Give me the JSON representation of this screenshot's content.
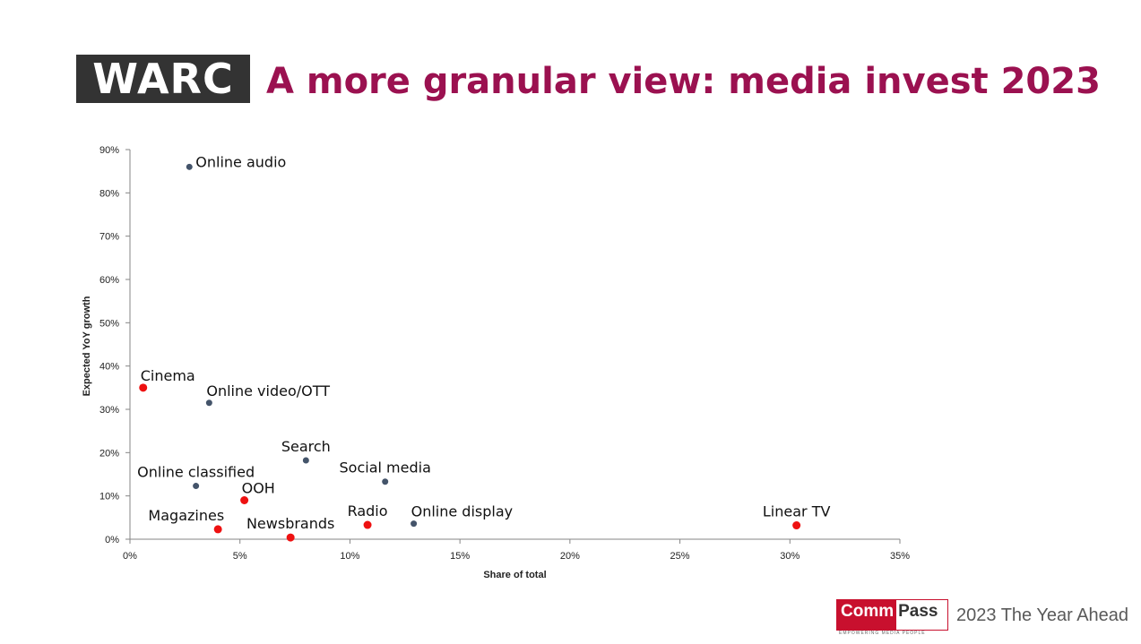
{
  "header": {
    "logo_text": "WARC",
    "title": "A more granular view: media invest 2023"
  },
  "footer": {
    "brand_left": "Comm",
    "brand_right": "Pass",
    "brand_tagline": "EMPOWERING MEDIA PEOPLE",
    "text": "2023 The Year Ahead"
  },
  "colors": {
    "title": "#9b1150",
    "point_digital": "#44546a",
    "point_traditional": "#ee1111",
    "axis": "#868686",
    "brand_red": "#c8102e"
  },
  "chart_data": {
    "type": "scatter",
    "title": "",
    "xlabel": "Share of total",
    "ylabel": "Expected YoY growth",
    "xlim": [
      0,
      35
    ],
    "ylim": [
      0,
      90
    ],
    "x_ticks": [
      {
        "value": 0,
        "label": "0%"
      },
      {
        "value": 5,
        "label": "5%"
      },
      {
        "value": 10,
        "label": "10%"
      },
      {
        "value": 15,
        "label": "15%"
      },
      {
        "value": 20,
        "label": "20%"
      },
      {
        "value": 25,
        "label": "25%"
      },
      {
        "value": 30,
        "label": "30%"
      },
      {
        "value": 35,
        "label": "35%"
      }
    ],
    "y_ticks": [
      {
        "value": 0,
        "label": "0%"
      },
      {
        "value": 10,
        "label": "10%"
      },
      {
        "value": 20,
        "label": "20%"
      },
      {
        "value": 30,
        "label": "30%"
      },
      {
        "value": 40,
        "label": "40%"
      },
      {
        "value": 50,
        "label": "50%"
      },
      {
        "value": 60,
        "label": "60%"
      },
      {
        "value": 70,
        "label": "70%"
      },
      {
        "value": 80,
        "label": "80%"
      },
      {
        "value": 90,
        "label": "90%"
      }
    ],
    "grid": false,
    "legend": "none",
    "points": [
      {
        "label": "Online audio",
        "x": 2.7,
        "y": 86.0,
        "color": "#44546a",
        "label_pos": "right"
      },
      {
        "label": "Cinema",
        "x": 0.6,
        "y": 35.0,
        "color": "#ee1111",
        "label_pos": "above-right"
      },
      {
        "label": "Online video/OTT",
        "x": 3.6,
        "y": 31.5,
        "color": "#44546a",
        "label_pos": "above-right"
      },
      {
        "label": "Search",
        "x": 8.0,
        "y": 18.2,
        "color": "#44546a",
        "label_pos": "above"
      },
      {
        "label": "Online classified",
        "x": 3.0,
        "y": 12.3,
        "color": "#44546a",
        "label_pos": "above"
      },
      {
        "label": "Social media",
        "x": 11.6,
        "y": 13.3,
        "color": "#44546a",
        "label_pos": "above"
      },
      {
        "label": "OOH",
        "x": 5.2,
        "y": 9.0,
        "color": "#ee1111",
        "label_pos": "above-right"
      },
      {
        "label": "Magazines",
        "x": 4.0,
        "y": 2.3,
        "color": "#ee1111",
        "label_pos": "above-left"
      },
      {
        "label": "Newsbrands",
        "x": 7.3,
        "y": 0.4,
        "color": "#ee1111",
        "label_pos": "above"
      },
      {
        "label": "Radio",
        "x": 10.8,
        "y": 3.3,
        "color": "#ee1111",
        "label_pos": "above"
      },
      {
        "label": "Online display",
        "x": 12.9,
        "y": 3.6,
        "color": "#44546a",
        "label_pos": "above-right"
      },
      {
        "label": "Linear TV",
        "x": 30.3,
        "y": 3.2,
        "color": "#ee1111",
        "label_pos": "above"
      }
    ]
  }
}
